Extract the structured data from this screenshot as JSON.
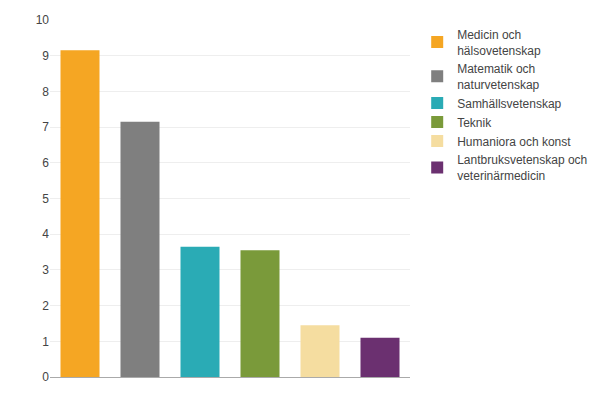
{
  "chart_data": {
    "type": "bar",
    "categories": [
      null,
      null,
      null,
      null,
      null,
      null
    ],
    "series": [
      {
        "name": "Medicin och\nhälsovetenskap",
        "color": "#F5A623",
        "values": [
          9.15,
          null,
          null,
          null,
          null,
          null
        ]
      },
      {
        "name": "Matematik och\nnaturvetenskap",
        "color": "#7F7F7F",
        "values": [
          null,
          7.15,
          null,
          null,
          null,
          null
        ]
      },
      {
        "name": "Samhällsvetenskap",
        "color": "#2AABB5",
        "values": [
          null,
          null,
          3.65,
          null,
          null,
          null
        ]
      },
      {
        "name": "Teknik",
        "color": "#7A9A3A",
        "values": [
          null,
          null,
          null,
          3.55,
          null,
          null
        ]
      },
      {
        "name": "Humaniora och konst",
        "color": "#F5DDA0",
        "values": [
          null,
          null,
          null,
          null,
          1.45,
          null
        ]
      },
      {
        "name": "Lantbruksvetenskap och\nveterinärmedicin",
        "color": "#6B3070",
        "values": [
          null,
          null,
          null,
          null,
          null,
          1.1
        ]
      }
    ],
    "ylim": [
      0,
      10
    ],
    "yticks": [
      0,
      1,
      2,
      3,
      4,
      5,
      6,
      7,
      8,
      9,
      10
    ],
    "grid": true,
    "legend": "right",
    "tick_labels": "y"
  }
}
